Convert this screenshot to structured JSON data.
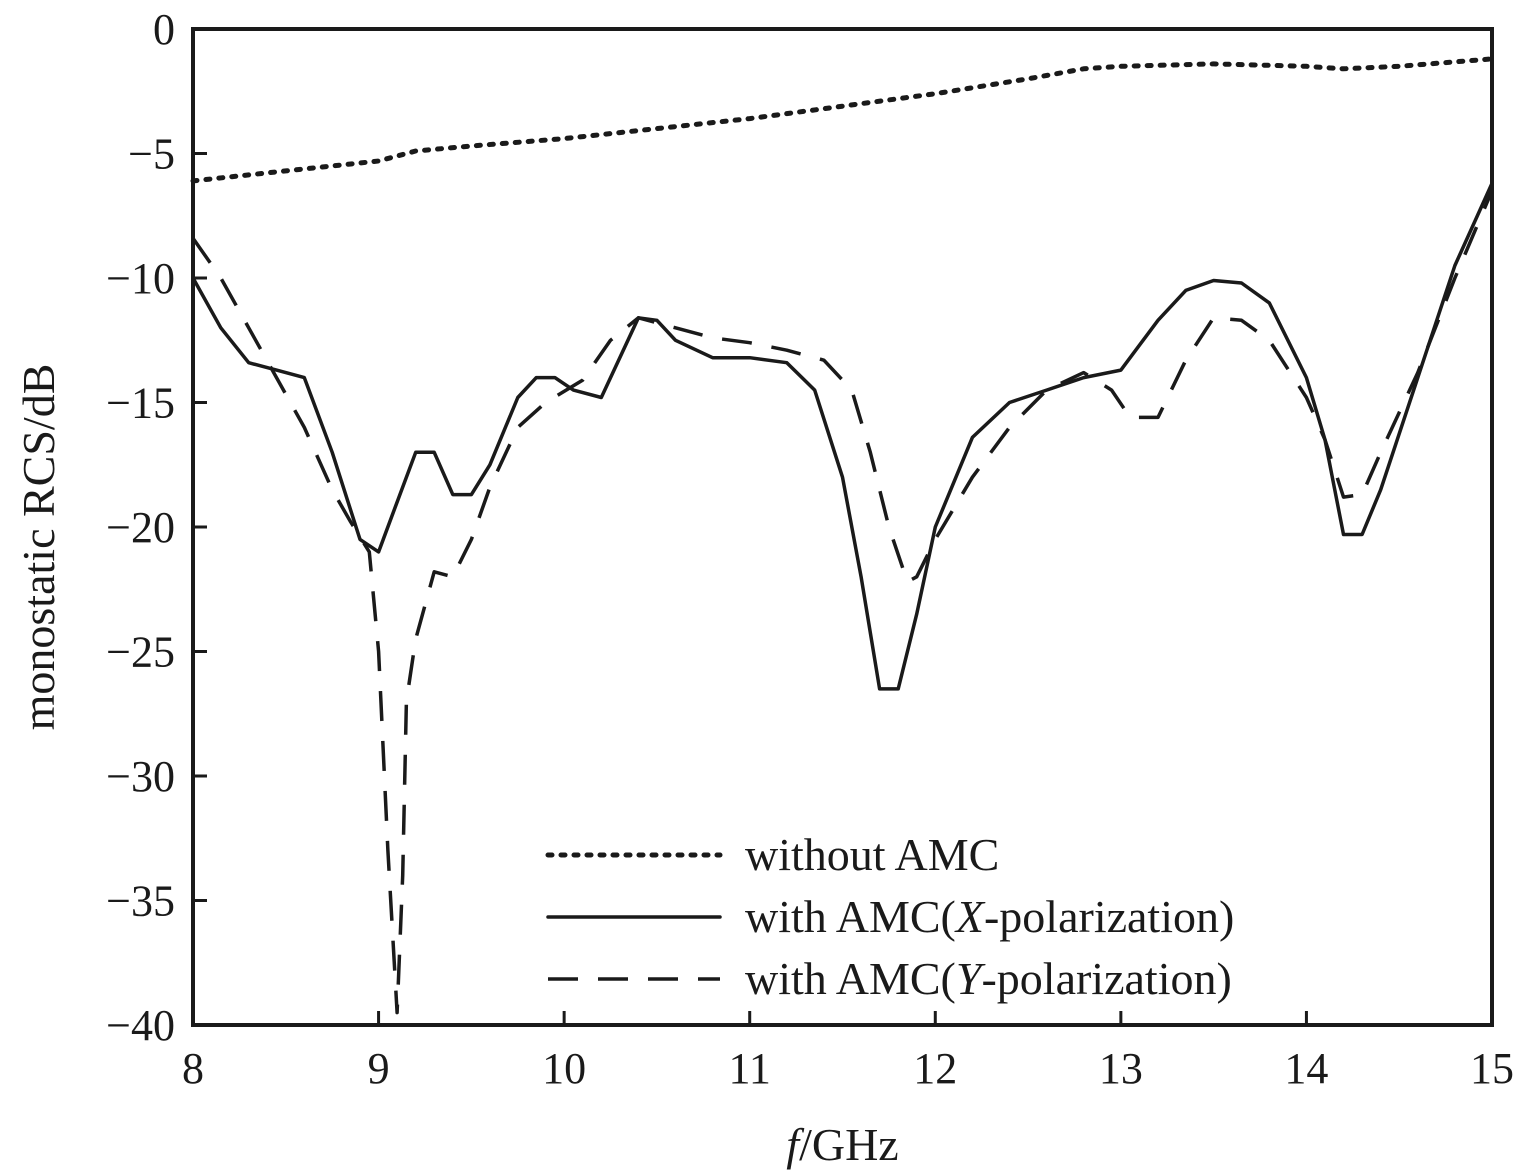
{
  "chart_data": {
    "type": "line",
    "xlabel_prefix": "f",
    "xlabel_suffix": "/GHz",
    "ylabel": "monostatic RCS/dB",
    "xlim": [
      8,
      15
    ],
    "ylim": [
      -40,
      0
    ],
    "xticks": [
      8,
      9,
      10,
      11,
      12,
      13,
      14,
      15
    ],
    "yticks": [
      0,
      -5,
      -10,
      -15,
      -20,
      -25,
      -30,
      -35,
      -40
    ],
    "ytick_labels": [
      "0",
      "−5",
      "−10",
      "−15",
      "−20",
      "−25",
      "−30",
      "−35",
      "−40"
    ],
    "grid": false,
    "legend_position": "bottom-right",
    "series": [
      {
        "name": "without AMC",
        "style": "dotted",
        "x": [
          8.0,
          8.5,
          9.0,
          9.2,
          9.5,
          10.0,
          10.5,
          11.0,
          11.5,
          12.0,
          12.5,
          12.8,
          13.0,
          13.5,
          14.0,
          14.2,
          14.5,
          15.0
        ],
        "y": [
          -6.1,
          -5.7,
          -5.3,
          -4.9,
          -4.7,
          -4.4,
          -4.0,
          -3.6,
          -3.1,
          -2.6,
          -2.0,
          -1.6,
          -1.5,
          -1.4,
          -1.5,
          -1.6,
          -1.5,
          -1.2
        ]
      },
      {
        "name_prefix": "with AMC(",
        "name_italic": "X",
        "name_suffix": "-polarization)",
        "style": "solid",
        "x": [
          8.0,
          8.15,
          8.3,
          8.45,
          8.6,
          8.75,
          8.9,
          9.0,
          9.1,
          9.2,
          9.3,
          9.4,
          9.5,
          9.6,
          9.75,
          9.85,
          9.95,
          10.05,
          10.2,
          10.4,
          10.5,
          10.6,
          10.8,
          11.0,
          11.2,
          11.35,
          11.5,
          11.6,
          11.7,
          11.8,
          11.9,
          12.0,
          12.2,
          12.4,
          12.6,
          12.8,
          13.0,
          13.2,
          13.35,
          13.5,
          13.65,
          13.8,
          14.0,
          14.1,
          14.2,
          14.3,
          14.4,
          14.6,
          14.8,
          15.0
        ],
        "y": [
          -10.0,
          -12.0,
          -13.4,
          -13.7,
          -14.0,
          -17.0,
          -20.5,
          -21.0,
          -19.0,
          -17.0,
          -17.0,
          -18.7,
          -18.7,
          -17.5,
          -14.8,
          -14.0,
          -14.0,
          -14.5,
          -14.8,
          -11.6,
          -11.7,
          -12.5,
          -13.2,
          -13.2,
          -13.4,
          -14.5,
          -18.0,
          -22.0,
          -26.5,
          -26.5,
          -23.5,
          -20.0,
          -16.4,
          -15.0,
          -14.5,
          -14.0,
          -13.7,
          -11.7,
          -10.5,
          -10.1,
          -10.2,
          -11.0,
          -14.0,
          -16.5,
          -20.3,
          -20.3,
          -18.5,
          -14.0,
          -9.5,
          -6.2
        ]
      },
      {
        "name_prefix": "with AMC(",
        "name_italic": "Y",
        "name_suffix": "-polarization)",
        "style": "dashed",
        "x": [
          8.0,
          8.15,
          8.3,
          8.45,
          8.6,
          8.75,
          8.85,
          8.95,
          9.0,
          9.05,
          9.1,
          9.13,
          9.15,
          9.2,
          9.3,
          9.4,
          9.5,
          9.6,
          9.75,
          9.9,
          10.1,
          10.25,
          10.4,
          10.5,
          10.6,
          10.8,
          11.0,
          11.2,
          11.4,
          11.55,
          11.65,
          11.75,
          11.85,
          11.9,
          12.0,
          12.2,
          12.4,
          12.6,
          12.8,
          12.95,
          13.05,
          13.2,
          13.35,
          13.5,
          13.65,
          13.8,
          14.0,
          14.1,
          14.2,
          14.3,
          14.4,
          14.6,
          14.8,
          15.0
        ],
        "y": [
          -8.4,
          -10.0,
          -12.0,
          -14.0,
          -16.0,
          -18.5,
          -19.8,
          -21.0,
          -25.0,
          -33.0,
          -39.5,
          -34.0,
          -27.0,
          -24.5,
          -21.8,
          -22.0,
          -20.5,
          -18.4,
          -16.0,
          -15.0,
          -14.1,
          -12.5,
          -11.6,
          -11.8,
          -12.0,
          -12.4,
          -12.6,
          -12.9,
          -13.3,
          -14.5,
          -17.0,
          -20.0,
          -22.2,
          -22.0,
          -20.5,
          -18.0,
          -16.0,
          -14.5,
          -13.8,
          -14.5,
          -15.6,
          -15.6,
          -13.3,
          -11.6,
          -11.7,
          -12.5,
          -14.8,
          -16.5,
          -18.8,
          -18.7,
          -17.0,
          -13.8,
          -10.0,
          -6.5
        ]
      }
    ]
  }
}
